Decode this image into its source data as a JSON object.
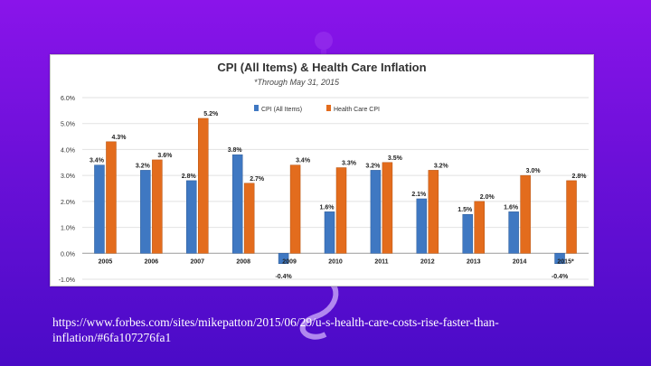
{
  "chart_data": {
    "type": "bar",
    "title": "CPI (All Items) & Health Care Inflation",
    "subtitle": "*Through May 31, 2015",
    "categories": [
      "2005",
      "2006",
      "2007",
      "2008",
      "2009",
      "2010",
      "2011",
      "2012",
      "2013",
      "2014",
      "2015*"
    ],
    "series": [
      {
        "name": "CPI (All Items)",
        "color": "#3f78c2",
        "values": [
          3.4,
          3.2,
          2.8,
          3.8,
          -0.4,
          1.6,
          3.2,
          2.1,
          1.5,
          1.6,
          -0.4
        ],
        "labels": [
          "3.4%",
          "3.2%",
          "2.8%",
          "3.8%",
          "-0.4%",
          "1.6%",
          "3.2%",
          "2.1%",
          "1.5%",
          "1.6%",
          "-0.4%"
        ]
      },
      {
        "name": "Health Care CPI",
        "color": "#e36c1d",
        "values": [
          4.3,
          3.6,
          5.2,
          2.7,
          3.4,
          3.3,
          3.5,
          3.2,
          2.0,
          3.0,
          2.8
        ],
        "labels": [
          "4.3%",
          "3.6%",
          "5.2%",
          "2.7%",
          "3.4%",
          "3.3%",
          "3.5%",
          "3.2%",
          "2.0%",
          "3.0%",
          "2.8%"
        ]
      }
    ],
    "ylim": [
      -1.0,
      6.0
    ],
    "yticks": [
      "-1.0%",
      "0.0%",
      "1.0%",
      "2.0%",
      "3.0%",
      "4.0%",
      "5.0%",
      "6.0%"
    ],
    "ytick_values": [
      -1,
      0,
      1,
      2,
      3,
      4,
      5,
      6
    ],
    "grid": true,
    "legend": "top-center"
  },
  "source_text": "https://www.forbes.com/sites/mikepatton/2015/06/29/u-s-health-care-costs-rise-faster-than-inflation/#6fa107276fa1"
}
